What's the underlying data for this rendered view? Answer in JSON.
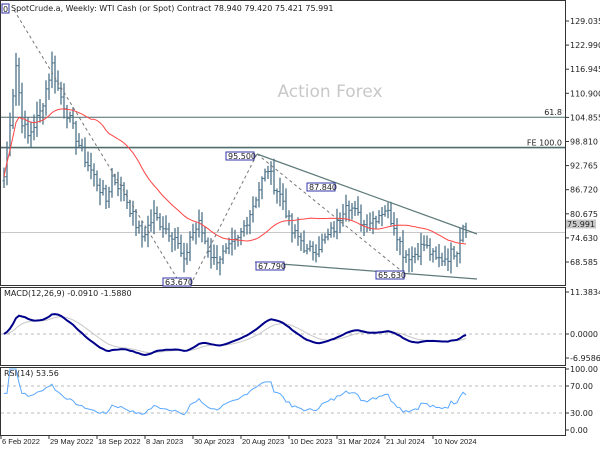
{
  "header": {
    "title": "SpotCrude.a, Weekly:  WTI Cash (or Spot) Contract  78.940 79.420 75.421 75.991",
    "corner_label": "0"
  },
  "watermark": "Action Forex",
  "colors": {
    "bars": "#4f7389",
    "ma": "#ff4444",
    "macd": "#00008b",
    "signal": "#c8c8c8",
    "rsi": "#5aa8ff",
    "levels": "#4f6b6b"
  },
  "chart_data": [
    {
      "type": "ohlc",
      "timeframe": "weekly",
      "x_tick_labels": [
        "6 Feb 2022",
        "29 May 2022",
        "18 Sep 2022",
        "8 Jan 2023",
        "30 Apr 2023",
        "20 Aug 2023",
        "10 Dec 2023",
        "31 Mar 2024",
        "21 Jul 2024",
        "10 Nov 2024"
      ],
      "y_tick_labels": [
        "129.035",
        "122.990",
        "116.945",
        "110.900",
        "104.855",
        "98.810",
        "92.765",
        "86.720",
        "80.675",
        "74.630",
        "68.585"
      ],
      "ylim": [
        62.5,
        131
      ],
      "close_keypoints": [
        [
          0,
          90
        ],
        [
          4,
          118
        ],
        [
          6,
          104
        ],
        [
          8,
          100
        ],
        [
          12,
          106
        ],
        [
          16,
          118
        ],
        [
          18,
          112
        ],
        [
          22,
          104
        ],
        [
          26,
          96
        ],
        [
          30,
          90
        ],
        [
          34,
          84
        ],
        [
          36,
          90
        ],
        [
          40,
          86
        ],
        [
          44,
          78
        ],
        [
          46,
          75
        ],
        [
          50,
          80
        ],
        [
          54,
          77
        ],
        [
          57,
          75
        ],
        [
          60,
          68
        ],
        [
          62,
          75
        ],
        [
          65,
          78
        ],
        [
          68,
          72
        ],
        [
          70,
          69
        ],
        [
          74,
          71
        ],
        [
          78,
          74
        ],
        [
          82,
          81
        ],
        [
          86,
          89
        ],
        [
          88,
          92
        ],
        [
          90,
          88
        ],
        [
          93,
          84
        ],
        [
          96,
          76
        ],
        [
          99,
          74
        ],
        [
          101,
          71
        ],
        [
          104,
          72
        ],
        [
          108,
          75
        ],
        [
          111,
          78
        ],
        [
          114,
          84
        ],
        [
          116,
          82
        ],
        [
          120,
          78
        ],
        [
          124,
          80
        ],
        [
          127,
          82
        ],
        [
          130,
          78
        ],
        [
          133,
          71
        ],
        [
          136,
          70
        ],
        [
          140,
          73
        ],
        [
          144,
          69
        ],
        [
          148,
          70
        ],
        [
          151,
          72
        ],
        [
          153,
          78
        ],
        [
          154,
          76
        ]
      ],
      "swing_labels": [
        "95.500",
        "87.840",
        "67.790",
        "65.630",
        "63.670"
      ],
      "levels": [
        {
          "label": "61.8",
          "value": 104.9
        },
        {
          "label": "FE 100.0",
          "value": 97.3
        }
      ],
      "current_price": "75.991",
      "moving_average": "red line"
    },
    {
      "type": "line",
      "title": "MACD(12,26,9) -0.0910 -1.5880",
      "y_tick_labels": [
        "11.3834",
        "0.0000",
        "-6.9586"
      ],
      "ylim": [
        -6.9586,
        11.3834
      ]
    },
    {
      "type": "line",
      "title": "RSI(14) 53.56",
      "y_tick_labels": [
        "100.00",
        "70.00",
        "30.00",
        "0.00"
      ],
      "ylim": [
        0,
        100
      ],
      "levels": [
        70,
        30
      ]
    }
  ]
}
